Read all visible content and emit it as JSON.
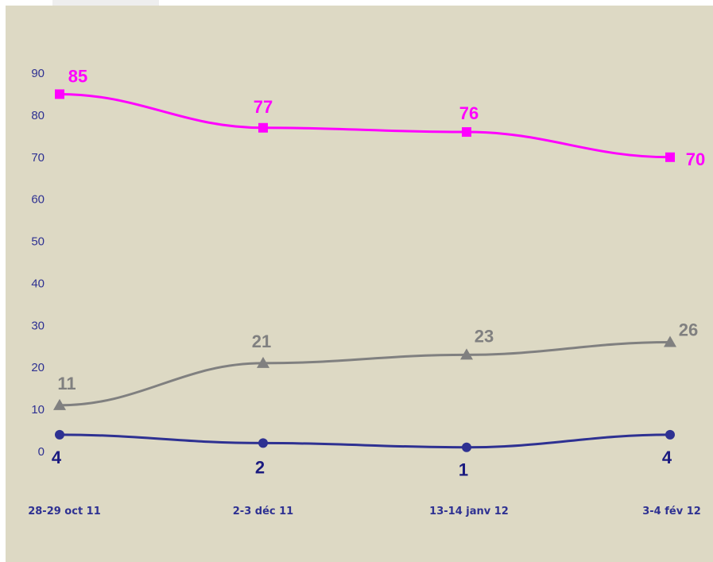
{
  "chart_data": {
    "type": "line",
    "title": "",
    "xlabel": "",
    "ylabel": "",
    "categories": [
      "28-29 oct 11",
      "2-3 déc  11",
      "13-14 janv 12",
      "3-4 fév 12"
    ],
    "yticks": [
      "0",
      "10",
      "20",
      "30",
      "40",
      "50",
      "60",
      "70",
      "80",
      "90"
    ],
    "ylim": [
      0,
      90
    ],
    "grid": false,
    "legend": "none",
    "series": [
      {
        "values": [
          85,
          77,
          76,
          70
        ],
        "labels": [
          "85",
          "77",
          "76",
          "70"
        ],
        "color": "#ff00ff",
        "marker": "square"
      },
      {
        "values": [
          11,
          21,
          23,
          26
        ],
        "labels": [
          "11",
          "21",
          "23",
          "26"
        ],
        "color": "#808080",
        "marker": "triangle"
      },
      {
        "values": [
          4,
          2,
          1,
          4
        ],
        "labels": [
          "4",
          "2",
          "1",
          "4"
        ],
        "color": "#2e3192",
        "marker": "circle",
        "label_color": "#1a1a80"
      }
    ]
  }
}
